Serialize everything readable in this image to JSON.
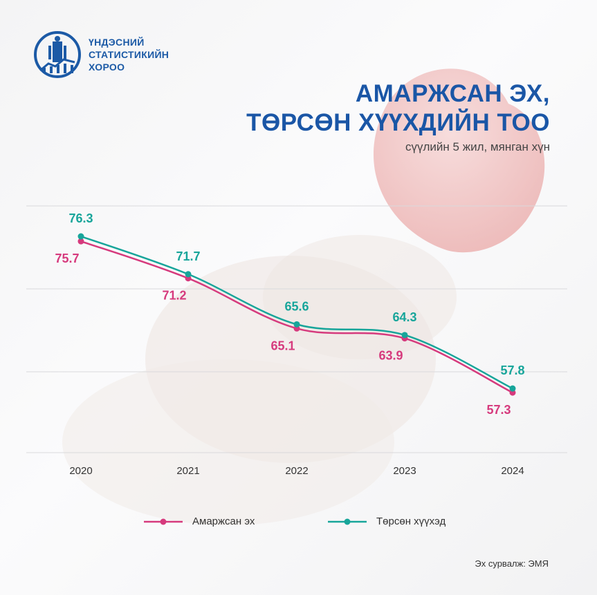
{
  "logo": {
    "lines": [
      "ҮНДЭСНИЙ",
      "СТАТИСТИКИЙН",
      "ХОРОО"
    ]
  },
  "title": {
    "line1": "АМАРЖСАН ЭХ,",
    "line2": "ТӨРСӨН ХҮҮХДИЙН ТОО"
  },
  "subtitle": "сүүлийн 5 жил, мянган хүн",
  "source": "Эх сурвалж: ЭМЯ",
  "colors": {
    "brand": "#1a56a6",
    "mothers": "#d63a7d",
    "births": "#17a59a"
  },
  "chart_data": {
    "type": "line",
    "title": "АМАРЖСАН ЭХ, ТӨРСӨН ХҮҮХДИЙН ТОО",
    "subtitle": "сүүлийн 5 жил, мянган хүн",
    "x": [
      "2020",
      "2021",
      "2022",
      "2023",
      "2024"
    ],
    "ylim": [
      50,
      80
    ],
    "grid": true,
    "legend_position": "bottom",
    "series": [
      {
        "name": "Амаржсан эх",
        "color": "#d63a7d",
        "values": [
          75.7,
          71.2,
          65.1,
          63.9,
          57.3
        ]
      },
      {
        "name": "Төрсөн хүүхэд",
        "color": "#17a59a",
        "values": [
          76.3,
          71.7,
          65.6,
          64.3,
          57.8
        ]
      }
    ]
  }
}
